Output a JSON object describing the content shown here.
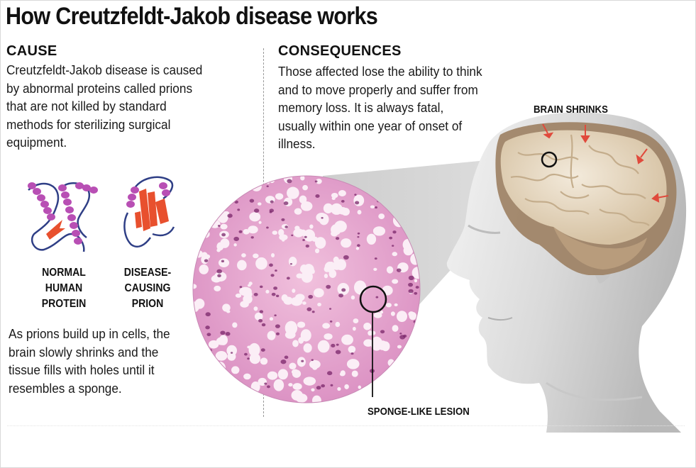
{
  "title": "How Creutzfeldt-Jakob disease works",
  "cause": {
    "heading": "CAUSE",
    "lines": [
      "Creutzfeldt-Jakob disease is caused",
      "by abnormal proteins called prions",
      "that are not killed by standard",
      "methods for sterilizing surgical",
      "equipment."
    ]
  },
  "consequences": {
    "heading": "CONSEQUENCES",
    "lines": [
      "Those affected lose the ability to think",
      "and to move properly and suffer from",
      "memory loss. It is always fatal,",
      "usually within one year of onset of",
      "illness."
    ]
  },
  "proteins": {
    "normal": [
      "NORMAL",
      "HUMAN",
      "PROTEIN"
    ],
    "prion": [
      "DISEASE-",
      "CAUSING",
      "PRION"
    ]
  },
  "buildup": {
    "lines": [
      "As prions build up in cells, the",
      "brain slowly shrinks and the",
      "tissue fills with holes until it",
      "resembles a sponge."
    ]
  },
  "labels": {
    "brain_shrinks": "BRAIN SHRINKS",
    "lesion": "SPONGE-LIKE LESION"
  },
  "colors": {
    "helix": "#b84fb4",
    "strand": "#e8502e",
    "coil": "#2f3f86",
    "tissue": "#e7a9cf",
    "nuclei": "#7a2569",
    "brain": "#e9dcc4",
    "brain_shadow": "#a68a6c",
    "arrow": "#e04a3c"
  }
}
